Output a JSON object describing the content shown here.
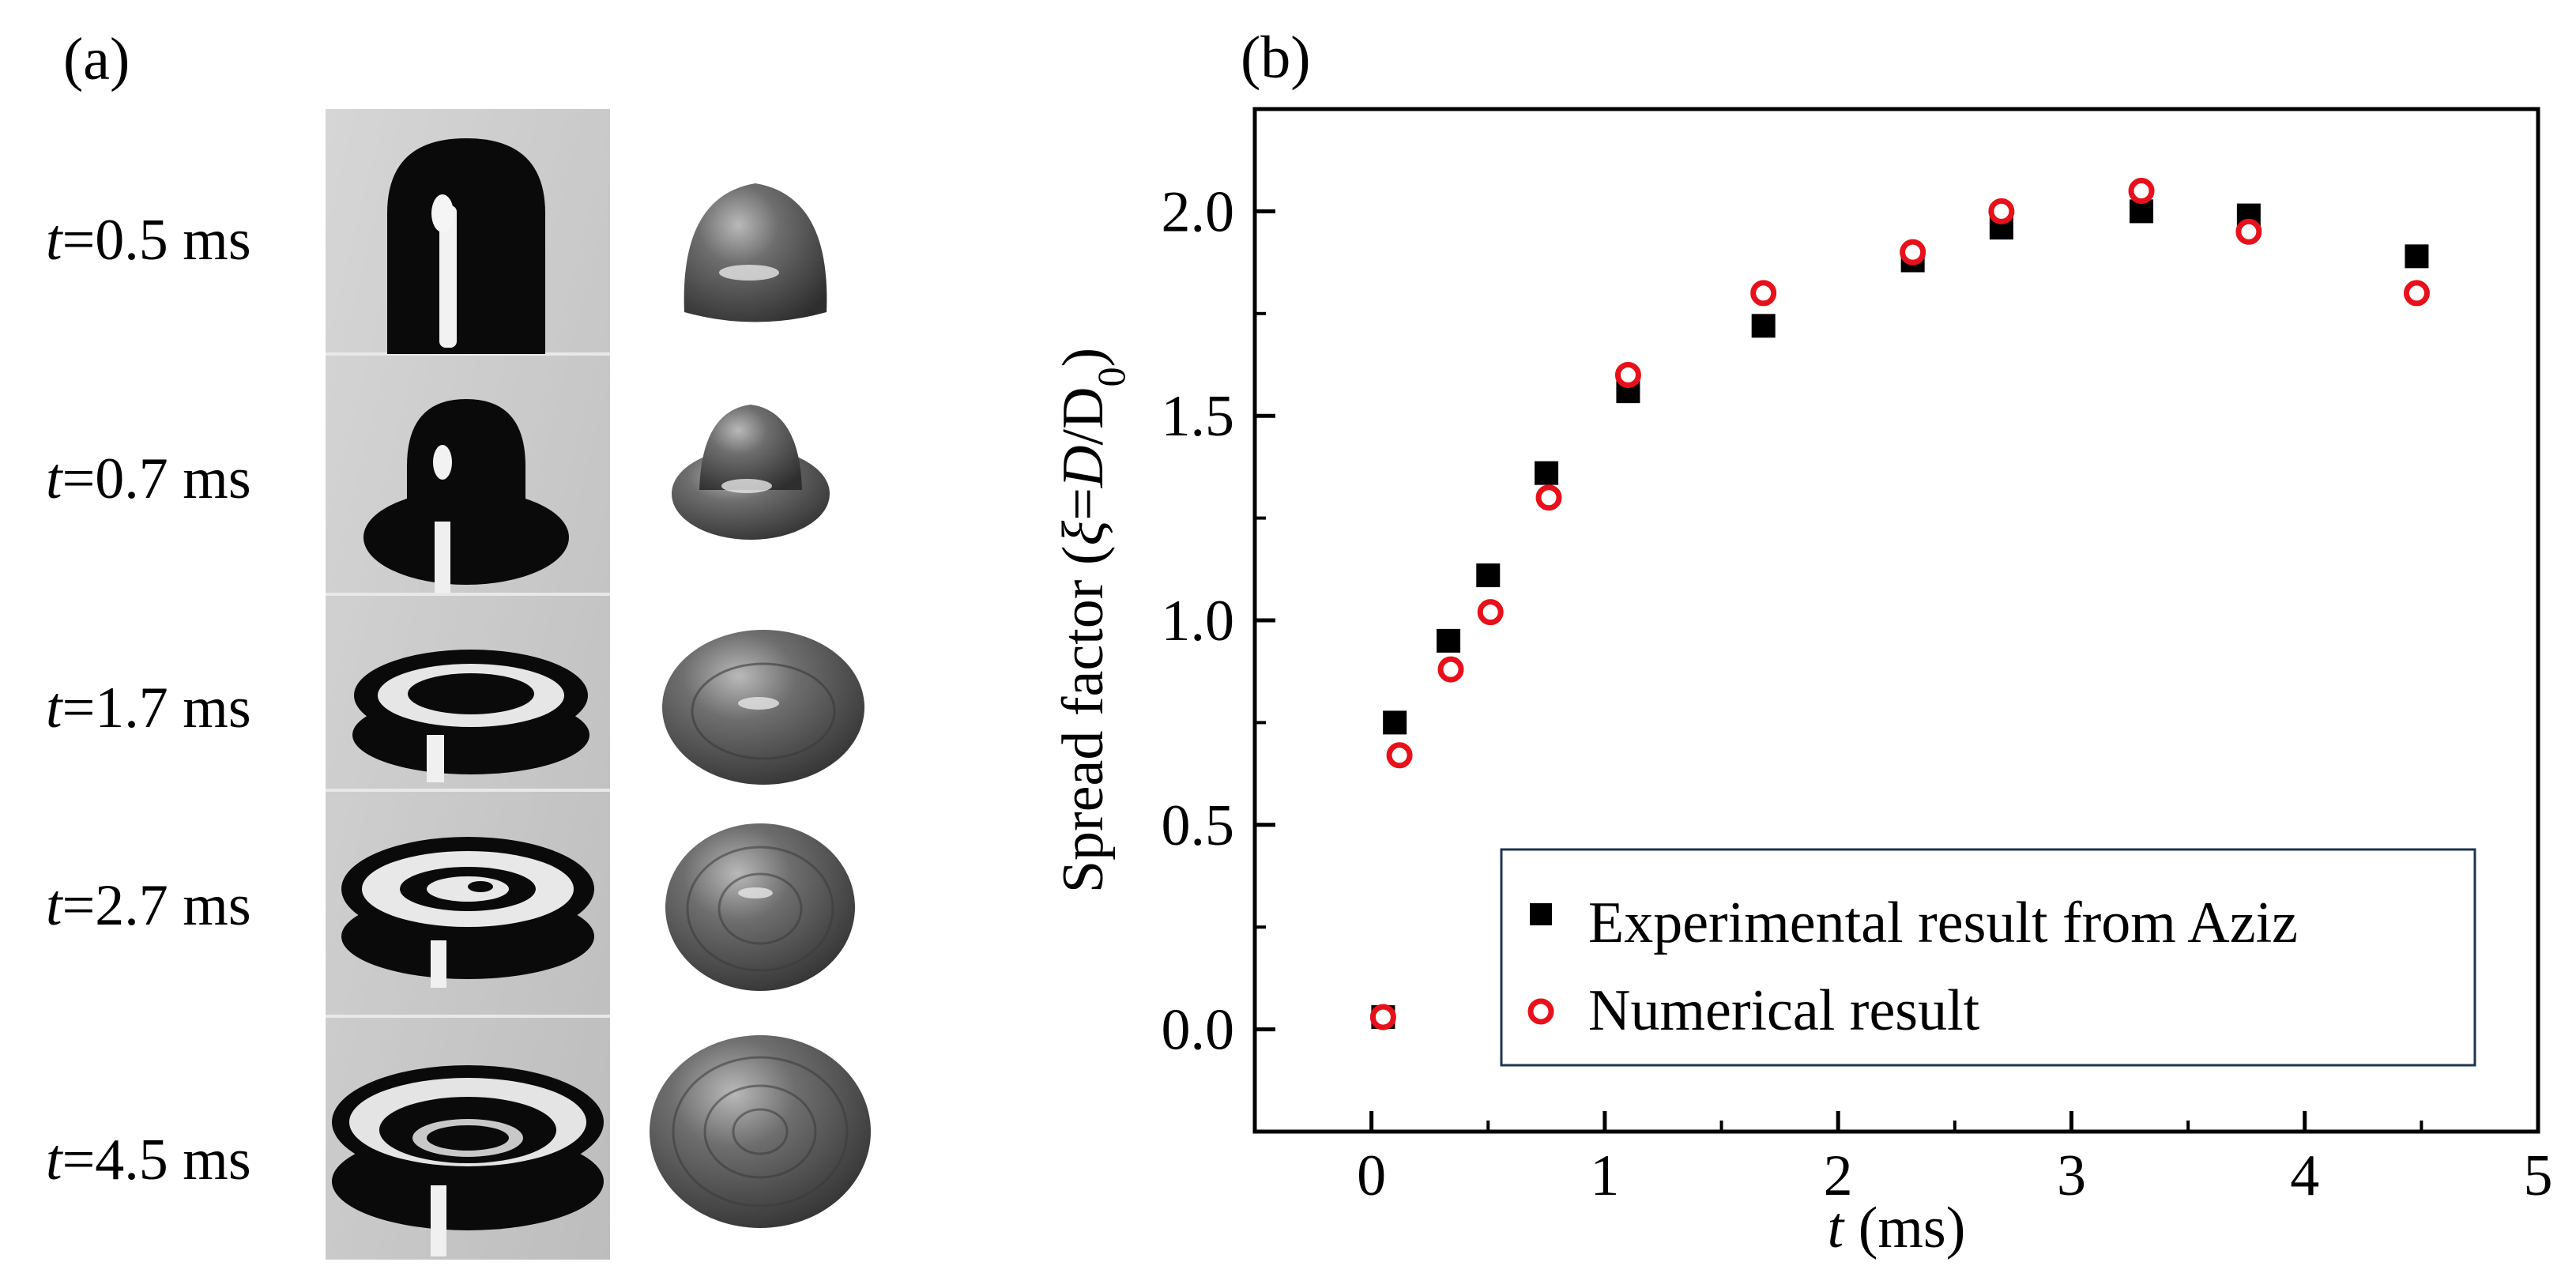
{
  "panel_a": {
    "label": "(a)",
    "rows": [
      {
        "time": "0.5"
      },
      {
        "time": "0.7"
      },
      {
        "time": "1.7"
      },
      {
        "time": "2.7"
      },
      {
        "time": "4.5"
      }
    ],
    "time_prefix": "t",
    "time_eq": "=",
    "time_unit": " ms",
    "colors": {
      "photo_bg": "#cfcfcf",
      "drop_dark": "#0a0a0a",
      "sim_gray": "#5c5c5c"
    }
  },
  "panel_b": {
    "label": "(b)"
  },
  "chart_data": {
    "type": "scatter",
    "title": "",
    "xlabel": "t (ms)",
    "ylabel": "Spread factor (ξ=D/D0)",
    "xlim": [
      -0.5,
      5
    ],
    "ylim": [
      -0.25,
      2.25
    ],
    "xticks": [
      0,
      1,
      2,
      3,
      4,
      5
    ],
    "yticks": [
      0.0,
      0.5,
      1.0,
      1.5,
      2.0
    ],
    "ytick_labels": [
      "0.0",
      "0.5",
      "1.0",
      "1.5",
      "2.0"
    ],
    "grid": false,
    "legend_position": "bottom-right",
    "series": [
      {
        "name": "Experimental result from Aziz",
        "marker": "filled-square",
        "color": "#000000",
        "x": [
          0.05,
          0.1,
          0.33,
          0.5,
          0.75,
          1.1,
          1.68,
          2.32,
          2.7,
          3.3,
          3.76,
          4.48
        ],
        "y": [
          0.03,
          0.75,
          0.95,
          1.11,
          1.36,
          1.56,
          1.72,
          1.88,
          1.96,
          2.0,
          1.99,
          1.89
        ]
      },
      {
        "name": "Numerical result",
        "marker": "open-circle",
        "color": "#e8101a",
        "x": [
          0.05,
          0.12,
          0.34,
          0.51,
          0.76,
          1.1,
          1.68,
          2.32,
          2.7,
          3.3,
          3.76,
          4.48
        ],
        "y": [
          0.03,
          0.67,
          0.88,
          1.02,
          1.3,
          1.6,
          1.8,
          1.9,
          2.0,
          2.05,
          1.95,
          1.8
        ]
      }
    ]
  }
}
